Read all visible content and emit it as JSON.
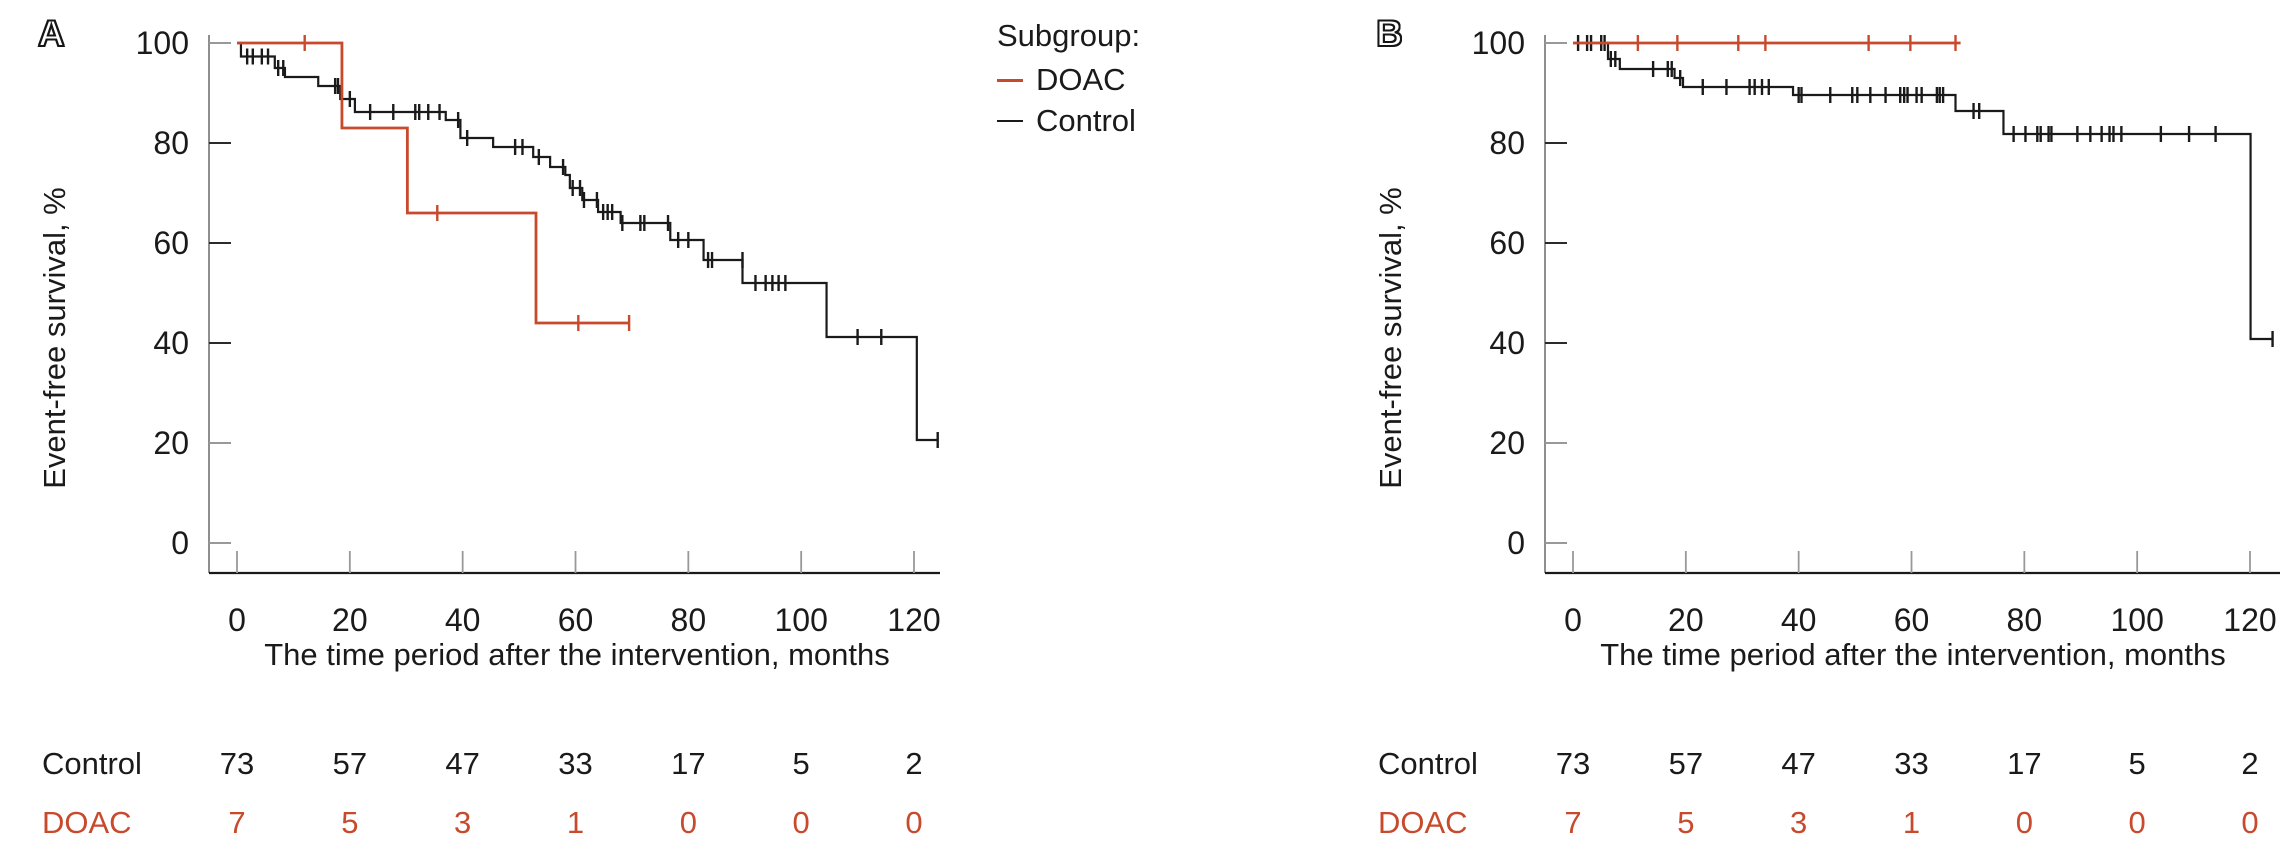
{
  "figure": {
    "panels": [
      {
        "letter": "A"
      },
      {
        "letter": "B"
      }
    ]
  },
  "axes": {
    "x_label": "The time period after the intervention, months",
    "y_label": "Event-free survival, %",
    "x_ticks": [
      0,
      20,
      40,
      60,
      80,
      100,
      120
    ],
    "y_ticks": [
      0,
      20,
      40,
      60,
      80,
      100
    ]
  },
  "legend": {
    "title": "Subgroup:",
    "items": [
      {
        "label": "DOAC",
        "color": "#c84a2d"
      },
      {
        "label": "Control",
        "color": "#1a1a1a"
      }
    ]
  },
  "colors": {
    "doac_red": "#c84a2d",
    "control_black": "#1a1a1a",
    "axis_gray": "#8f8f8f",
    "tick_gray": "#999999"
  },
  "risk_table": {
    "columns_months": [
      0,
      20,
      40,
      60,
      80,
      100,
      120
    ],
    "rows": [
      {
        "label": "Control",
        "color": "#1a1a1a",
        "values": [
          73,
          57,
          47,
          33,
          17,
          5,
          2
        ]
      },
      {
        "label": "DOAC",
        "color": "#c84a2d",
        "values": [
          7,
          5,
          3,
          1,
          0,
          0,
          0
        ]
      }
    ]
  },
  "chart_data": [
    {
      "type": "line",
      "subtype": "kaplan-meier-step",
      "panel": "A",
      "title": "",
      "xlabel": "The time period after the intervention, months",
      "ylabel": "Event-free survival, %",
      "xlim": [
        0,
        125
      ],
      "ylim": [
        0,
        100
      ],
      "x_ticks": [
        0,
        20,
        40,
        60,
        80,
        100,
        120
      ],
      "y_ticks": [
        0,
        20,
        40,
        60,
        80,
        100
      ],
      "grid": false,
      "legend_position": "top-right-outside",
      "series": [
        {
          "name": "Control",
          "color": "#1a1a1a",
          "steps": [
            [
              0,
              100
            ],
            [
              0.7,
              97.3
            ],
            [
              6.7,
              95
            ],
            [
              8.5,
              93.2
            ],
            [
              14.4,
              91.4
            ],
            [
              18.3,
              88.8
            ],
            [
              20.9,
              86.2
            ],
            [
              37,
              84.6
            ],
            [
              39.6,
              81
            ],
            [
              45.4,
              79.2
            ],
            [
              52.5,
              77.2
            ],
            [
              55.5,
              75.2
            ],
            [
              58.2,
              73.6
            ],
            [
              59,
              71
            ],
            [
              61.2,
              68.6
            ],
            [
              64,
              66.2
            ],
            [
              68,
              64
            ],
            [
              76.8,
              60.6
            ],
            [
              82.7,
              56.6
            ],
            [
              89.6,
              52
            ],
            [
              104.5,
              41.2
            ],
            [
              120.5,
              20.6
            ]
          ],
          "end_month": 124.2,
          "end_tick": true,
          "censors": [
            [
              1.8,
              97.3
            ],
            [
              2.8,
              97.3
            ],
            [
              4.4,
              97.3
            ],
            [
              5.5,
              97.3
            ],
            [
              7.3,
              95
            ],
            [
              8.2,
              95
            ],
            [
              17.4,
              91.4
            ],
            [
              17.9,
              91.4
            ],
            [
              20,
              88.8
            ],
            [
              23.6,
              86.2
            ],
            [
              27.7,
              86.2
            ],
            [
              31.6,
              86.2
            ],
            [
              32.3,
              86.2
            ],
            [
              33.9,
              86.2
            ],
            [
              35.9,
              86.2
            ],
            [
              39.2,
              84.6
            ],
            [
              40.8,
              81
            ],
            [
              49.3,
              79.2
            ],
            [
              50.6,
              79.2
            ],
            [
              53.5,
              77.2
            ],
            [
              57.8,
              75.2
            ],
            [
              59.5,
              71
            ],
            [
              60.8,
              71
            ],
            [
              61.5,
              68.6
            ],
            [
              63.8,
              68.6
            ],
            [
              64.9,
              66.2
            ],
            [
              65.7,
              66.2
            ],
            [
              66.5,
              66.2
            ],
            [
              68.3,
              64
            ],
            [
              71.5,
              64
            ],
            [
              72.2,
              64
            ],
            [
              76.4,
              64
            ],
            [
              78.2,
              60.6
            ],
            [
              80,
              60.6
            ],
            [
              83.5,
              56.6
            ],
            [
              84.2,
              56.6
            ],
            [
              89.6,
              56.6
            ],
            [
              91.9,
              52
            ],
            [
              93.7,
              52
            ],
            [
              94.9,
              52
            ],
            [
              96,
              52
            ],
            [
              97.2,
              52
            ],
            [
              110,
              41.2
            ],
            [
              114.2,
              41.2
            ]
          ]
        },
        {
          "name": "DOAC",
          "color": "#c84a2d",
          "steps": [
            [
              0,
              100
            ],
            [
              18.6,
              83
            ],
            [
              30.2,
              66
            ],
            [
              53,
              44
            ]
          ],
          "end_month": 69.5,
          "end_tick": false,
          "censors": [
            [
              12,
              100
            ],
            [
              35.5,
              66
            ],
            [
              60.5,
              44
            ],
            [
              69.5,
              44
            ]
          ]
        }
      ]
    },
    {
      "type": "line",
      "subtype": "kaplan-meier-step",
      "panel": "B",
      "title": "",
      "xlabel": "The time period after the intervention, months",
      "ylabel": "Event-free survival, %",
      "xlim": [
        0,
        125
      ],
      "ylim": [
        0,
        100
      ],
      "x_ticks": [
        0,
        20,
        40,
        60,
        80,
        100,
        120
      ],
      "y_ticks": [
        0,
        20,
        40,
        60,
        80,
        100
      ],
      "grid": false,
      "legend_position": "none",
      "series": [
        {
          "name": "Control",
          "color": "#1a1a1a",
          "steps": [
            [
              0,
              100
            ],
            [
              6.2,
              96.8
            ],
            [
              8.3,
              94.8
            ],
            [
              18,
              93
            ],
            [
              19.5,
              91.2
            ],
            [
              39,
              89.6
            ],
            [
              67.8,
              86.4
            ],
            [
              76.3,
              81.8
            ],
            [
              120.1,
              40.8
            ]
          ],
          "end_month": 124,
          "end_tick": true,
          "censors": [
            [
              0.9,
              100
            ],
            [
              2.5,
              100
            ],
            [
              3.2,
              100
            ],
            [
              5,
              100
            ],
            [
              5.6,
              100
            ],
            [
              6.7,
              96.8
            ],
            [
              7.5,
              96.8
            ],
            [
              14.2,
              94.8
            ],
            [
              16.8,
              94.8
            ],
            [
              17.5,
              94.8
            ],
            [
              19,
              93
            ],
            [
              23,
              91.2
            ],
            [
              27.2,
              91.2
            ],
            [
              31.3,
              91.2
            ],
            [
              32.2,
              91.2
            ],
            [
              33.5,
              91.2
            ],
            [
              34.7,
              91.2
            ],
            [
              40,
              89.6
            ],
            [
              40.5,
              89.6
            ],
            [
              45.6,
              89.6
            ],
            [
              49.5,
              89.6
            ],
            [
              50.4,
              89.6
            ],
            [
              52.7,
              89.6
            ],
            [
              55.4,
              89.6
            ],
            [
              58,
              89.6
            ],
            [
              58.7,
              89.6
            ],
            [
              59.3,
              89.6
            ],
            [
              60.9,
              89.6
            ],
            [
              61.8,
              89.6
            ],
            [
              64.5,
              89.6
            ],
            [
              65,
              89.6
            ],
            [
              65.6,
              89.6
            ],
            [
              71,
              86.4
            ],
            [
              72,
              86.4
            ],
            [
              78.1,
              81.8
            ],
            [
              80.2,
              81.8
            ],
            [
              82.3,
              81.8
            ],
            [
              82.9,
              81.8
            ],
            [
              84.3,
              81.8
            ],
            [
              84.8,
              81.8
            ],
            [
              89.4,
              81.8
            ],
            [
              91.7,
              81.8
            ],
            [
              93.7,
              81.8
            ],
            [
              95.1,
              81.8
            ],
            [
              95.8,
              81.8
            ],
            [
              97.2,
              81.8
            ],
            [
              104.2,
              81.8
            ],
            [
              109.2,
              81.8
            ],
            [
              113.9,
              81.8
            ]
          ]
        },
        {
          "name": "DOAC",
          "color": "#c84a2d",
          "steps": [
            [
              0,
              100
            ]
          ],
          "end_month": 68.7,
          "end_tick": false,
          "censors": [
            [
              11.5,
              100
            ],
            [
              18.5,
              100
            ],
            [
              29.3,
              100
            ],
            [
              34.1,
              100
            ],
            [
              52.4,
              100
            ],
            [
              59.8,
              100
            ],
            [
              67.8,
              100
            ]
          ]
        }
      ]
    }
  ]
}
